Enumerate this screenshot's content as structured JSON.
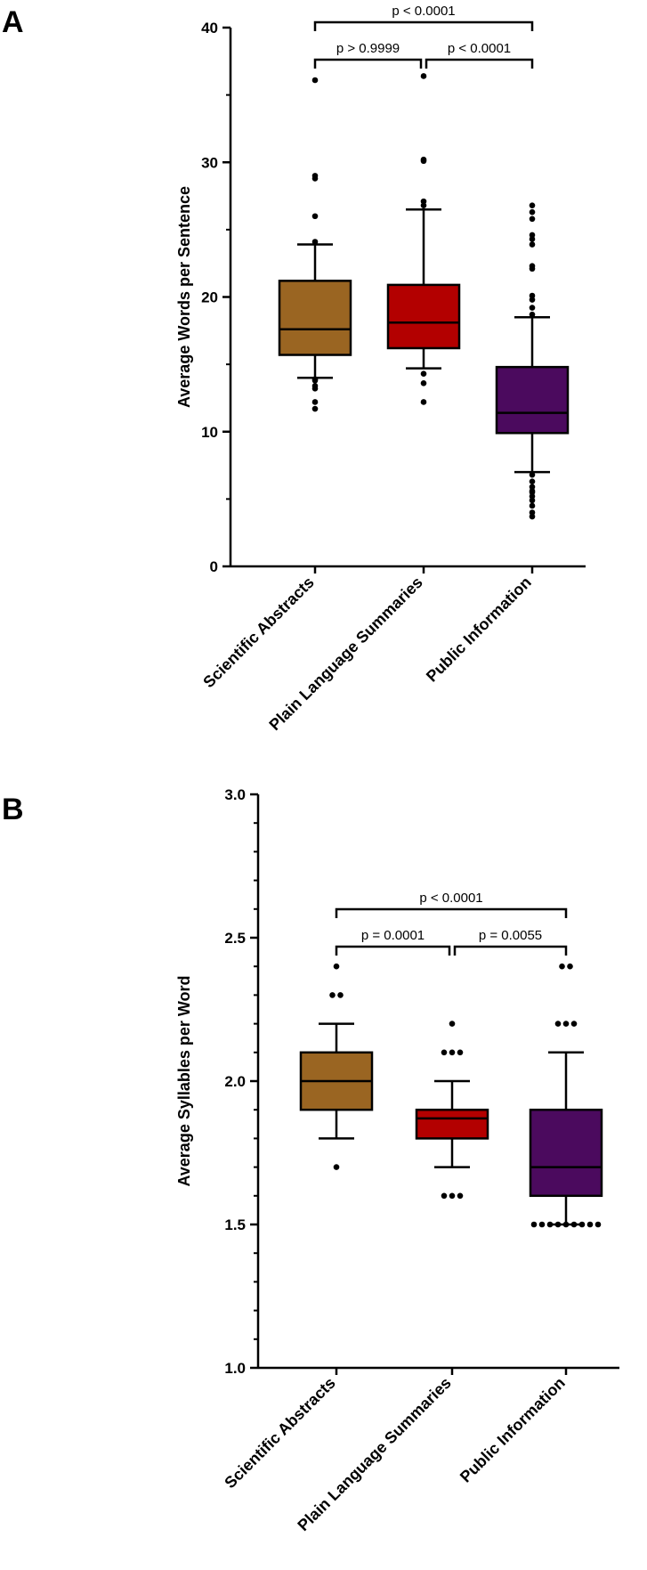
{
  "chart_data": [
    {
      "panel": "A",
      "type": "box",
      "ylabel": "Average Words per Sentence",
      "ylim": [
        0,
        40
      ],
      "yticks": [
        0,
        10,
        20,
        30,
        40
      ],
      "categories": [
        "Scientific Abstracts",
        "Plain Language Summaries",
        "Public Information"
      ],
      "colors": [
        "#9a6522",
        "#b30000",
        "#4b0a5e"
      ],
      "boxes": [
        {
          "q1": 15.7,
          "median": 17.6,
          "q3": 21.2,
          "whisker_low": 14.0,
          "whisker_high": 23.9,
          "outliers": [
            36.1,
            29.0,
            28.8,
            26.0,
            24.1,
            13.9,
            13.8,
            13.4,
            13.2,
            12.2,
            11.7
          ]
        },
        {
          "q1": 16.2,
          "median": 18.1,
          "q3": 20.9,
          "whisker_low": 14.7,
          "whisker_high": 26.5,
          "outliers": [
            36.4,
            30.2,
            30.1,
            27.1,
            26.8,
            14.3,
            13.6,
            12.2
          ]
        },
        {
          "q1": 9.9,
          "median": 11.4,
          "q3": 14.8,
          "whisker_low": 7.0,
          "whisker_high": 18.5,
          "outliers": [
            26.8,
            26.3,
            25.8,
            24.6,
            24.3,
            23.9,
            22.3,
            22.1,
            20.1,
            19.8,
            19.2,
            18.7,
            6.8,
            6.3,
            5.9,
            5.6,
            5.5,
            5.2,
            4.9,
            4.5,
            4.0,
            3.7
          ]
        }
      ],
      "comparisons": [
        {
          "from": 0,
          "to": 2,
          "label": "p < 0.0001",
          "level": 2
        },
        {
          "from": 0,
          "to": 1,
          "label": "p > 0.9999",
          "level": 1
        },
        {
          "from": 1,
          "to": 2,
          "label": "p < 0.0001",
          "level": 1
        }
      ]
    },
    {
      "panel": "B",
      "type": "box",
      "ylabel": "Average Syllables per Word",
      "ylim": [
        1.0,
        3.0
      ],
      "yticks": [
        1.0,
        1.5,
        2.0,
        2.5,
        3.0
      ],
      "categories": [
        "Scientific Abstracts",
        "Plain Language Summaries",
        "Public Information"
      ],
      "colors": [
        "#9a6522",
        "#b30000",
        "#4b0a5e"
      ],
      "boxes": [
        {
          "q1": 1.9,
          "median": 2.0,
          "q3": 2.1,
          "whisker_low": 1.8,
          "whisker_high": 2.2,
          "outliers": [
            2.4,
            2.3,
            2.3,
            1.7
          ]
        },
        {
          "q1": 1.8,
          "median": 1.87,
          "q3": 1.9,
          "whisker_low": 1.7,
          "whisker_high": 2.0,
          "outliers": [
            2.2,
            2.1,
            2.1,
            2.1,
            1.6,
            1.6,
            1.6
          ]
        },
        {
          "q1": 1.6,
          "median": 1.7,
          "q3": 1.9,
          "whisker_low": 1.5,
          "whisker_high": 2.1,
          "outliers": [
            2.4,
            2.4,
            2.2,
            2.2,
            2.2,
            1.5,
            1.5,
            1.5,
            1.5,
            1.5,
            1.5,
            1.5,
            1.5,
            1.5
          ]
        }
      ],
      "comparisons": [
        {
          "from": 0,
          "to": 2,
          "label": "p < 0.0001",
          "level": 2
        },
        {
          "from": 0,
          "to": 1,
          "label": "p = 0.0001",
          "level": 1
        },
        {
          "from": 1,
          "to": 2,
          "label": "p = 0.0055",
          "level": 1
        }
      ]
    }
  ]
}
